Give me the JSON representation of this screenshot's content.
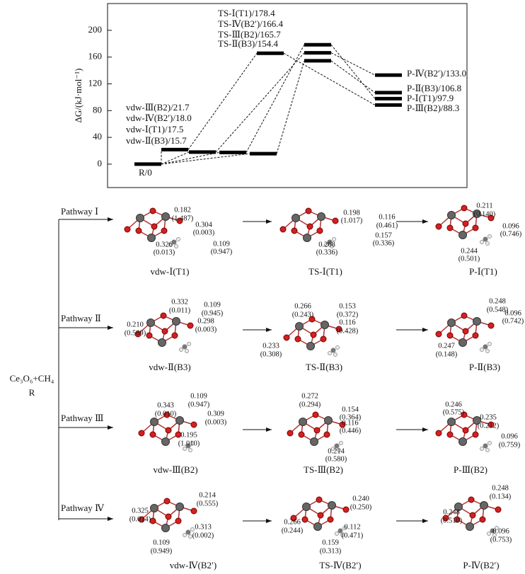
{
  "chart_data": {
    "type": "energy",
    "ylabel": "ΔG/(kJ·mol⁻¹)",
    "ylim": [
      -35,
      240
    ],
    "yticks": [
      0,
      40,
      80,
      120,
      160,
      200
    ],
    "reactant": {
      "label": "R/0",
      "value": 0
    },
    "pathways": [
      {
        "vdw": {
          "label": "vdw-Ⅰ(T1)/17.5",
          "value": 17.5
        },
        "ts": {
          "label": "TS-Ⅰ(T1)/178.4",
          "value": 178.4
        },
        "p": {
          "label": "P-Ⅰ(T1)/97.9",
          "value": 97.9
        }
      },
      {
        "vdw": {
          "label": "vdw-Ⅱ(B3)/15.7",
          "value": 15.7
        },
        "ts": {
          "label": "TS-Ⅱ(B3)/154.4",
          "value": 154.4
        },
        "p": {
          "label": "P-Ⅱ(B3)/106.8",
          "value": 106.8
        }
      },
      {
        "vdw": {
          "label": "vdw-Ⅲ(B2)/21.7",
          "value": 21.7
        },
        "ts": {
          "label": "TS-Ⅲ(B2)/165.7",
          "value": 165.7
        },
        "p": {
          "label": "P-Ⅲ(B2)/88.3",
          "value": 88.3
        }
      },
      {
        "vdw": {
          "label": "vdw-Ⅳ(B2′)/18.0",
          "value": 18.0
        },
        "ts": {
          "label": "TS-Ⅳ(B2′)/166.4",
          "value": 166.4
        },
        "p": {
          "label": "P-Ⅳ(B2′)/133.0",
          "value": 133.0
        }
      }
    ]
  },
  "scheme": {
    "reactant": [
      "Ce₃O₆+CH₄",
      "R"
    ],
    "rows": [
      {
        "label": "Pathway Ⅰ",
        "steps": [
          {
            "name": "vdw-Ⅰ(T1)",
            "notes": [
              "0.182",
              "(1.487)",
              "0.304",
              "(0.003)",
              "0.326",
              "(0.013)",
              "0.109",
              "(0.947)"
            ]
          },
          {
            "name": "TS-Ⅰ(T1)",
            "notes": [
              "0.198",
              "(1.017)",
              "0.116",
              "(0.461)",
              "0.157",
              "(0.336)",
              "0.268",
              "(0.336)"
            ]
          },
          {
            "name": "P-Ⅰ(T1)",
            "notes": [
              "0.211",
              "(0.140)",
              "0.096",
              "(0.746)",
              "0.244",
              "(0.501)"
            ]
          }
        ]
      },
      {
        "label": "Pathway Ⅱ",
        "steps": [
          {
            "name": "vdw-Ⅱ(B3)",
            "notes": [
              "0.332",
              "(0.011)",
              "0.109",
              "(0.945)",
              "0.298",
              "(0.003)",
              "0.210",
              "(0.589)"
            ]
          },
          {
            "name": "TS-Ⅱ(B3)",
            "notes": [
              "0.266",
              "(0.243)",
              "0.153",
              "(0.372)",
              "0.116",
              "(0.428)",
              "0.233",
              "(0.308)"
            ]
          },
          {
            "name": "P-Ⅱ(B3)",
            "notes": [
              "0.248",
              "(0.548)",
              "0.096",
              "(0.742)",
              "0.247",
              "(0.148)"
            ]
          }
        ]
      },
      {
        "label": "Pathway Ⅲ",
        "steps": [
          {
            "name": "vdw-Ⅲ(B2)",
            "notes": [
              "0.343",
              "(0.010)",
              "0.109",
              "(0.947)",
              "0.309",
              "(0.003)",
              "0.195",
              "(1.010)"
            ]
          },
          {
            "name": "TS-Ⅲ(B2)",
            "notes": [
              "0.272",
              "(0.294)",
              "0.154",
              "(0.364)",
              "0.116",
              "(0.446)",
              "0.214",
              "(0.580)"
            ]
          },
          {
            "name": "P-Ⅲ(B2)",
            "notes": [
              "0.246",
              "(0.575)",
              "0.235",
              "(0.212)",
              "0.096",
              "(0.759)"
            ]
          }
        ]
      },
      {
        "label": "Pathway Ⅳ",
        "steps": [
          {
            "name": "vdw-Ⅳ(B2′)",
            "notes": [
              "0.214",
              "(0.555)",
              "0.325",
              "(0.014)",
              "0.313",
              "(0.002)",
              "0.109",
              "(0.949)"
            ]
          },
          {
            "name": "TS-Ⅳ(B2′)",
            "notes": [
              "0.240",
              "(0.250)",
              "0.266",
              "(0.244)",
              "0.112",
              "(0.471)",
              "0.159",
              "(0.313)"
            ]
          },
          {
            "name": "P-Ⅳ(B2′)",
            "notes": [
              "0.248",
              "(0.134)",
              "0.248",
              "(0.510)",
              "0.096",
              "(0.753)"
            ]
          }
        ]
      }
    ]
  }
}
